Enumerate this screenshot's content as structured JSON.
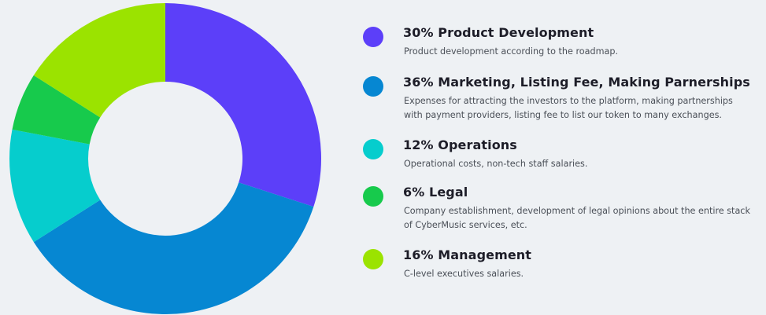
{
  "chart_data": {
    "type": "donut",
    "title": "",
    "slices": [
      {
        "label": "Product Development",
        "value": 30,
        "color": "#5c3ff9"
      },
      {
        "label": "Marketing, Listing Fee, Making Parnerships",
        "value": 36,
        "color": "#0687d2"
      },
      {
        "label": "Operations",
        "value": 12,
        "color": "#06cdcd"
      },
      {
        "label": "Legal",
        "value": 6,
        "color": "#17ca4c"
      },
      {
        "label": "Management",
        "value": 16,
        "color": "#9be300"
      }
    ]
  },
  "legend": {
    "items": [
      {
        "title": "30% Product Development",
        "description": "Product development according to the roadmap.",
        "color": "#5c3ff9"
      },
      {
        "title": "36% Marketing, Listing Fee, Making Parnerships",
        "description": "Expenses for attracting the investors to the platform, making partnerships with payment providers, listing fee to list our token to many exchanges.",
        "color": "#0687d2"
      },
      {
        "title": "12% Operations",
        "description": "Operational costs, non-tech staff salaries.",
        "color": "#06cdcd"
      },
      {
        "title": "6% Legal",
        "description": "Company establishment, development of legal opinions about the entire stack of CyberMusic services, etc.",
        "color": "#17ca4c"
      },
      {
        "title": "16% Management",
        "description": "C-level executives salaries.",
        "color": "#9be300"
      }
    ]
  }
}
